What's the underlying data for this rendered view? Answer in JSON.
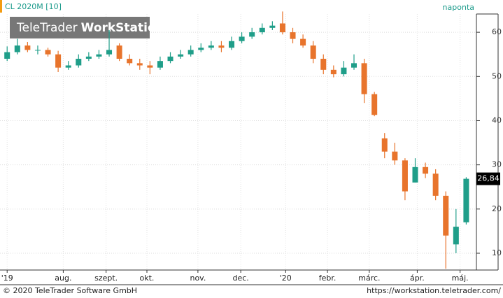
{
  "chart_data": {
    "type": "candlestick",
    "title": "CL 2020M [10]",
    "period": "naponta",
    "watermark_light": "TeleTrader",
    "watermark_bold": "WorkStation",
    "footer_left": "© 2020 TeleTrader Software GmbH",
    "footer_right": "https://workstation.teletrader.com/",
    "up_color": "#1f9e89",
    "down_color": "#e8742c",
    "open": [
      54,
      55.5,
      57,
      56,
      56,
      55,
      52,
      52.5,
      54,
      54.5,
      55,
      57,
      54,
      53,
      52.5,
      52,
      53.5,
      54.5,
      55,
      56,
      56.5,
      57,
      56.5,
      58,
      59,
      60,
      61,
      62,
      60,
      58.5,
      57,
      54,
      51.5,
      50.5,
      52,
      53,
      46,
      36,
      33,
      31,
      26,
      29.5,
      28,
      23,
      12,
      17
    ],
    "high": [
      56.8,
      58.5,
      57.8,
      57,
      56.5,
      55.8,
      53.5,
      55,
      55.5,
      56,
      60.5,
      57.5,
      55,
      54,
      53.5,
      54.5,
      55.5,
      56,
      57,
      57.5,
      58,
      58,
      59,
      60,
      61,
      62,
      62.5,
      64.7,
      61,
      59.5,
      58,
      55,
      52.5,
      53.5,
      55,
      54,
      46.5,
      37.2,
      35,
      31.5,
      31.5,
      30.5,
      29,
      24,
      20,
      27.2
    ],
    "low": [
      53.5,
      55,
      55.5,
      55,
      54.5,
      51,
      51.5,
      52,
      53.5,
      54,
      54.5,
      53.5,
      52.5,
      51.5,
      50.5,
      51.5,
      53,
      54,
      54.5,
      55.5,
      56,
      55.5,
      56,
      57.5,
      58.5,
      59.5,
      60.5,
      59.5,
      57.5,
      56.5,
      53,
      50.5,
      49.8,
      50,
      51.5,
      44,
      41,
      31.5,
      30,
      22,
      26,
      27,
      22,
      6.5,
      10,
      16.5
    ],
    "close": [
      55.5,
      57,
      56,
      56,
      55,
      52,
      52.5,
      54,
      54.5,
      55,
      56,
      54,
      53,
      52.5,
      52,
      53.5,
      54.5,
      55,
      56,
      56.5,
      57,
      56.5,
      58,
      59,
      60,
      61,
      61.5,
      60,
      58.5,
      57,
      54,
      51.5,
      50.5,
      52,
      53,
      46,
      41.3,
      33,
      31,
      24,
      29.5,
      28,
      23,
      14,
      16,
      26.84
    ],
    "last_value": 26.84,
    "last_value_label": "26,84",
    "xlim": [
      -0.7,
      46
    ],
    "xticks": [
      {
        "value": 0,
        "label": "'19"
      },
      {
        "value": 5.5,
        "label": "aug."
      },
      {
        "value": 9.7,
        "label": "szept."
      },
      {
        "value": 13.7,
        "label": "okt."
      },
      {
        "value": 18.7,
        "label": "nov."
      },
      {
        "value": 22.9,
        "label": "dec."
      },
      {
        "value": 27.3,
        "label": "'20"
      },
      {
        "value": 31.4,
        "label": "febr."
      },
      {
        "value": 35.5,
        "label": "márc."
      },
      {
        "value": 40.2,
        "label": "ápr."
      },
      {
        "value": 44.4,
        "label": "máj."
      }
    ],
    "ylim": [
      6.2,
      67.3
    ],
    "yticks": [
      10,
      20,
      30,
      40,
      50,
      60
    ],
    "grid": true
  }
}
